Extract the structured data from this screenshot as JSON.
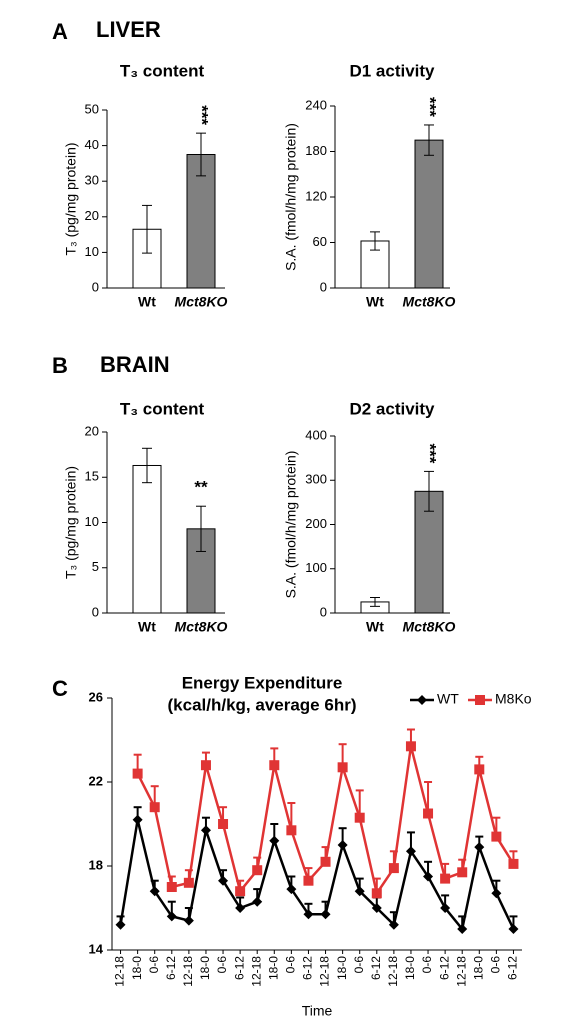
{
  "sections": [
    {
      "letter": "A",
      "title": "LIVER"
    },
    {
      "letter": "B",
      "title": "BRAIN"
    },
    {
      "letter": "C"
    }
  ],
  "chart_data": [
    {
      "type": "bar",
      "title": "T₃ content",
      "ylabel": "T₃ (pg/mg protein)",
      "categories": [
        "Wt",
        "Mct8KO"
      ],
      "values": [
        16.5,
        37.5
      ],
      "errors": [
        6.7,
        6
      ],
      "colors": [
        "#ffffff",
        "#808080"
      ],
      "annotation": "***",
      "ylim": [
        0,
        50
      ],
      "yticks": [
        0,
        10,
        20,
        30,
        40,
        50
      ]
    },
    {
      "type": "bar",
      "title": "D1 activity",
      "ylabel": "S.A. (fmol/h/mg protein)",
      "categories": [
        "Wt",
        "Mct8KO"
      ],
      "values": [
        62,
        195
      ],
      "errors": [
        12,
        20
      ],
      "colors": [
        "#ffffff",
        "#808080"
      ],
      "annotation": "***",
      "ylim": [
        0,
        240
      ],
      "yticks": [
        0,
        60,
        120,
        180,
        240
      ]
    },
    {
      "type": "bar",
      "title": "T₃ content",
      "ylabel": "T₃ (pg/mg protein)",
      "categories": [
        "Wt",
        "Mct8KO"
      ],
      "values": [
        16.3,
        9.3
      ],
      "errors": [
        1.9,
        2.5
      ],
      "colors": [
        "#ffffff",
        "#808080"
      ],
      "annotation": "**",
      "ylim": [
        0,
        20
      ],
      "yticks": [
        0,
        5,
        10,
        15,
        20
      ]
    },
    {
      "type": "bar",
      "title": "D2 activity",
      "ylabel": "S.A. (fmol/h/mg protein)",
      "categories": [
        "Wt",
        "Mct8KO"
      ],
      "values": [
        25,
        275
      ],
      "errors": [
        10,
        45
      ],
      "colors": [
        "#ffffff",
        "#808080"
      ],
      "annotation": "***",
      "ylim": [
        0,
        400
      ],
      "yticks": [
        0,
        100,
        200,
        300,
        400
      ]
    },
    {
      "type": "line",
      "title": "Energy Expenditure",
      "subtitle": "(kcal/h/kg, average 6hr)",
      "xlabel": "Time",
      "categories": [
        "12-18",
        "18-0",
        "0-6",
        "6-12",
        "12-18",
        "18-0",
        "0-6",
        "6-12",
        "12-18",
        "18-0",
        "0-6",
        "6-12",
        "12-18",
        "18-0",
        "0-6",
        "6-12",
        "12-18",
        "18-0",
        "0-6",
        "6-12",
        "12-18",
        "18-0",
        "0-6",
        "6-12"
      ],
      "series": [
        {
          "name": "WT",
          "color": "#000000",
          "marker": "diamond",
          "values": [
            15.2,
            20.2,
            16.8,
            15.6,
            15.4,
            19.7,
            17.3,
            16.0,
            16.3,
            19.2,
            16.9,
            15.7,
            15.7,
            19.0,
            16.8,
            16.0,
            15.2,
            18.7,
            17.5,
            16.0,
            15.0,
            18.9,
            16.7,
            15.0
          ],
          "errors": [
            0.4,
            0.6,
            0.5,
            0.7,
            0.6,
            0.6,
            0.5,
            0.5,
            0.6,
            0.8,
            0.6,
            0.5,
            0.6,
            0.8,
            0.6,
            0.5,
            0.6,
            0.9,
            0.7,
            0.6,
            0.6,
            0.5,
            0.6,
            0.6
          ]
        },
        {
          "name": "M8Ko",
          "color": "#e03434",
          "marker": "square",
          "values": [
            null,
            22.4,
            20.8,
            17.0,
            17.2,
            22.8,
            20.0,
            16.8,
            17.8,
            22.8,
            19.7,
            17.3,
            18.2,
            22.7,
            20.3,
            16.7,
            17.9,
            23.7,
            20.5,
            17.4,
            17.7,
            22.6,
            19.4,
            18.1
          ],
          "errors": [
            null,
            0.9,
            1.0,
            0.5,
            0.6,
            0.6,
            0.8,
            0.5,
            0.6,
            0.8,
            1.3,
            0.6,
            0.7,
            1.1,
            1.3,
            0.7,
            0.8,
            0.8,
            1.5,
            0.7,
            0.6,
            0.6,
            0.9,
            0.6
          ]
        }
      ],
      "ylim": [
        14,
        26
      ],
      "yticks": [
        14,
        18,
        22,
        26
      ],
      "legend": "top-right"
    }
  ]
}
